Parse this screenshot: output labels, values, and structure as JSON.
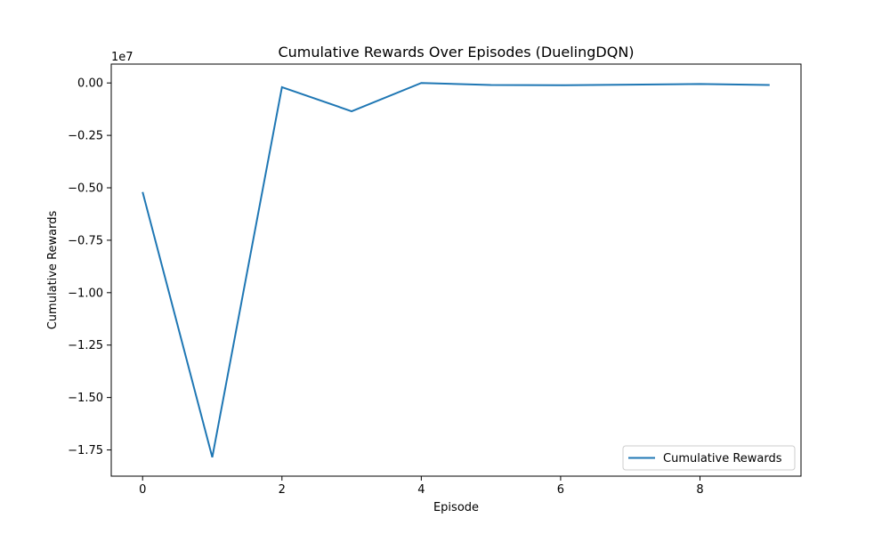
{
  "chart_data": {
    "type": "line",
    "title": "Cumulative Rewards Over Episodes (DuelingDQN)",
    "xlabel": "Episode",
    "ylabel": "Cumulative Rewards",
    "y_offset_label": "1e7",
    "y_scale_factor": 10000000,
    "x": [
      0,
      1,
      2,
      3,
      4,
      5,
      6,
      7,
      8,
      9
    ],
    "series": [
      {
        "name": "Cumulative Rewards",
        "color": "#1f77b4",
        "values": [
          -5200000,
          -17850000,
          -200000,
          -1350000,
          0,
          -100000,
          -110000,
          -80000,
          -50000,
          -100000
        ]
      }
    ],
    "xlim": [
      -0.45,
      9.45
    ],
    "ylim": [
      -18750000,
      900000
    ],
    "xticks": [
      0,
      2,
      4,
      6,
      8
    ],
    "xtick_labels": [
      "0",
      "2",
      "4",
      "6",
      "8"
    ],
    "yticks": [
      0,
      -2500000,
      -5000000,
      -7500000,
      -10000000,
      -12500000,
      -15000000,
      -17500000
    ],
    "ytick_labels": [
      "0.00",
      "−0.25",
      "−0.50",
      "−0.75",
      "−1.00",
      "−1.25",
      "−1.50",
      "−1.75"
    ],
    "grid": false,
    "legend_position": "lower-right"
  }
}
